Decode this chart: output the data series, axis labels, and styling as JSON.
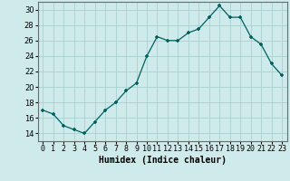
{
  "x": [
    0,
    1,
    2,
    3,
    4,
    5,
    6,
    7,
    8,
    9,
    10,
    11,
    12,
    13,
    14,
    15,
    16,
    17,
    18,
    19,
    20,
    21,
    22,
    23
  ],
  "y": [
    17,
    16.5,
    15,
    14.5,
    14,
    15.5,
    17,
    18,
    19.5,
    20.5,
    24,
    26.5,
    26,
    26,
    27,
    27.5,
    29,
    30.5,
    29,
    29,
    26.5,
    25.5,
    23,
    21.5
  ],
  "line_color": "#006060",
  "marker_color": "#006060",
  "bg_color": "#ceeaea",
  "grid_color": "#aad0d0",
  "xlabel": "Humidex (Indice chaleur)",
  "ylim": [
    13,
    31
  ],
  "yticks": [
    14,
    16,
    18,
    20,
    22,
    24,
    26,
    28,
    30
  ],
  "xlim": [
    -0.5,
    23.5
  ],
  "tick_fontsize": 6,
  "label_fontsize": 7
}
